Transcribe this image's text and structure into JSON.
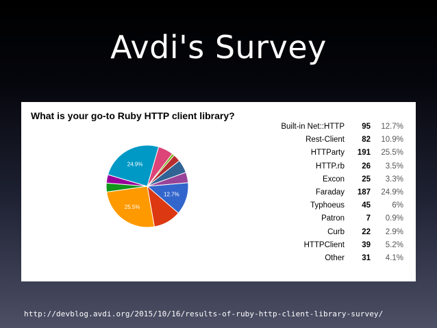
{
  "slide": {
    "title": "Avdi's Survey",
    "source_url": "http://devblog.avdi.org/2015/10/16/results-of-ruby-http-client-library-survey/"
  },
  "chart_data": {
    "type": "pie",
    "title": "What is your go-to Ruby HTTP client library?",
    "legend_position": "right",
    "slices": [
      {
        "label": "Built-in Net::HTTP",
        "count": 95,
        "percent": "12.7%",
        "value": 12.7,
        "color": "#3366cc",
        "shown_label": "12.7%"
      },
      {
        "label": "Rest-Client",
        "count": 82,
        "percent": "10.9%",
        "value": 10.9,
        "color": "#dc3912",
        "shown_label": ""
      },
      {
        "label": "HTTParty",
        "count": 191,
        "percent": "25.5%",
        "value": 25.5,
        "color": "#ff9900",
        "shown_label": "25.5%"
      },
      {
        "label": "HTTP.rb",
        "count": 26,
        "percent": "3.5%",
        "value": 3.5,
        "color": "#109618",
        "shown_label": ""
      },
      {
        "label": "Excon",
        "count": 25,
        "percent": "3.3%",
        "value": 3.3,
        "color": "#990099",
        "shown_label": ""
      },
      {
        "label": "Faraday",
        "count": 187,
        "percent": "24.9%",
        "value": 24.9,
        "color": "#0099c6",
        "shown_label": "24.9%"
      },
      {
        "label": "Typhoeus",
        "count": 45,
        "percent": "6%",
        "value": 6.0,
        "color": "#dd4477",
        "shown_label": ""
      },
      {
        "label": "Patron",
        "count": 7,
        "percent": "0.9%",
        "value": 0.9,
        "color": "#66aa00",
        "shown_label": ""
      },
      {
        "label": "Curb",
        "count": 22,
        "percent": "2.9%",
        "value": 2.9,
        "color": "#b82e2e",
        "shown_label": ""
      },
      {
        "label": "HTTPClient",
        "count": 39,
        "percent": "5.2%",
        "value": 5.2,
        "color": "#316395",
        "shown_label": ""
      },
      {
        "label": "Other",
        "count": 31,
        "percent": "4.1%",
        "value": 4.1,
        "color": "#994499",
        "shown_label": ""
      }
    ]
  }
}
